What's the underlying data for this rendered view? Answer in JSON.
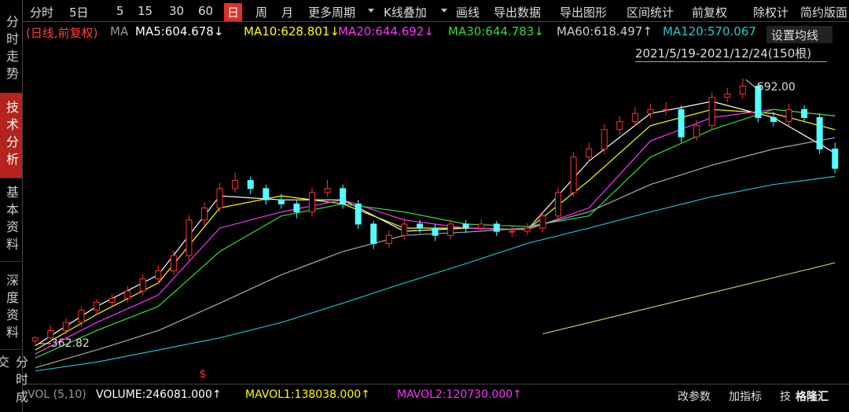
{
  "toolbar": [
    "分时",
    "5日",
    "5",
    "15",
    "30",
    "60",
    "日",
    "周",
    "月",
    "更多周期",
    "K线叠加",
    "画线",
    "导出数据",
    "导出图形",
    "区间统计",
    "前复权",
    "除权计",
    "简约版面"
  ],
  "sidebar": [
    "分时走势",
    "技术分析",
    "基本资料",
    "深度资料",
    "分时成交"
  ],
  "legend": {
    "period": "(日线,前复权)",
    "ma": "MA",
    "items": [
      {
        "text": "MA5:604.678↓",
        "color": "#ffffff"
      },
      {
        "text": "MA10:628.801↓",
        "color": "#ffff00"
      },
      {
        "text": "MA20:644.692↓",
        "color": "#ff33ff"
      },
      {
        "text": "MA30:644.783↓",
        "color": "#33dd33"
      },
      {
        "text": "MA60:618.497↑",
        "color": "#cccccc"
      },
      {
        "text": "MA120:570.067",
        "color": "#22cccc"
      }
    ],
    "setting": "设置均线",
    "range": "2021/5/19-2021/12/24(150根)"
  },
  "chart_data": {
    "type": "candlestick",
    "ylim": [
      320,
      700
    ],
    "up_color": "#ff3232",
    "down_color": "#54ffff",
    "candles": [
      [
        366,
        372,
        362.82,
        370
      ],
      [
        370,
        385,
        368,
        379
      ],
      [
        379,
        394,
        375,
        389
      ],
      [
        389,
        409,
        384,
        404
      ],
      [
        404,
        418,
        398,
        414
      ],
      [
        414,
        425,
        408,
        419
      ],
      [
        419,
        434,
        414,
        428
      ],
      [
        428,
        449,
        423,
        443
      ],
      [
        443,
        460,
        438,
        453
      ],
      [
        453,
        478,
        448,
        472
      ],
      [
        472,
        522,
        466,
        516
      ],
      [
        516,
        538,
        510,
        531
      ],
      [
        531,
        562,
        526,
        555
      ],
      [
        555,
        575,
        550,
        565
      ],
      [
        565,
        570,
        548,
        555
      ],
      [
        555,
        560,
        535,
        541
      ],
      [
        541,
        548,
        530,
        536
      ],
      [
        536,
        540,
        518,
        526
      ],
      [
        526,
        556,
        520,
        550
      ],
      [
        550,
        566,
        545,
        555
      ],
      [
        555,
        560,
        530,
        536
      ],
      [
        536,
        541,
        505,
        511
      ],
      [
        511,
        515,
        480,
        487
      ],
      [
        487,
        503,
        482,
        497
      ],
      [
        497,
        518,
        492,
        511
      ],
      [
        511,
        516,
        500,
        506
      ],
      [
        506,
        511,
        490,
        497
      ],
      [
        497,
        517,
        492,
        511
      ],
      [
        511,
        516,
        500,
        506
      ],
      [
        506,
        517,
        501,
        511
      ],
      [
        511,
        515,
        496,
        502
      ],
      [
        502,
        508,
        495,
        502
      ],
      [
        502,
        512,
        497,
        506
      ],
      [
        506,
        527,
        501,
        521
      ],
      [
        521,
        556,
        516,
        550
      ],
      [
        550,
        600,
        545,
        594
      ],
      [
        594,
        612,
        588,
        604
      ],
      [
        604,
        635,
        598,
        628
      ],
      [
        628,
        645,
        622,
        638
      ],
      [
        638,
        656,
        632,
        648
      ],
      [
        648,
        660,
        642,
        653
      ],
      [
        653,
        662,
        645,
        653
      ],
      [
        653,
        658,
        612,
        619
      ],
      [
        619,
        640,
        614,
        633
      ],
      [
        633,
        674,
        628,
        668
      ],
      [
        668,
        680,
        662,
        672
      ],
      [
        672,
        692.0,
        666,
        682
      ],
      [
        682,
        686,
        637,
        643
      ],
      [
        643,
        650,
        632,
        638
      ],
      [
        638,
        660,
        633,
        653
      ],
      [
        653,
        658,
        637,
        643
      ],
      [
        643,
        648,
        598,
        604
      ],
      [
        604,
        612,
        574,
        580
      ]
    ],
    "ma_x": [
      0,
      4,
      8,
      12,
      16,
      20,
      24,
      28,
      32,
      36,
      40,
      44,
      48,
      52
    ],
    "ma_lines": [
      {
        "color": "#ffffff",
        "values": [
          360,
          409,
          448,
          546,
          541,
          541,
          502,
          506,
          504,
          589,
          648,
          663,
          643,
          599
        ]
      },
      {
        "color": "#ffff00",
        "values": [
          355,
          399,
          438,
          531,
          546,
          536,
          506,
          506,
          504,
          565,
          633,
          653,
          648,
          628
        ]
      },
      {
        "color": "#ff33ff",
        "values": [
          350,
          389,
          423,
          506,
          526,
          541,
          516,
          506,
          504,
          531,
          614,
          643,
          653,
          645
        ]
      },
      {
        "color": "#33dd33",
        "values": [
          345,
          379,
          409,
          477,
          521,
          536,
          526,
          511,
          508,
          521,
          594,
          628,
          653,
          645
        ]
      },
      {
        "color": "#aaaaaa",
        "values": [
          333,
          355,
          379,
          413,
          448,
          477,
          497,
          501,
          506,
          526,
          560,
          584,
          604,
          618
        ]
      },
      {
        "color": "#22bbcc",
        "values": [
          329,
          340,
          355,
          370,
          389,
          413,
          438,
          462,
          487,
          506,
          526,
          545,
          560,
          570
        ]
      }
    ],
    "long_line": {
      "color": "#c8c864",
      "x": [
        33,
        52
      ],
      "values": [
        375,
        463
      ]
    },
    "high_label": {
      "value": 692,
      "label": "692.00"
    },
    "low_label": {
      "value": 362.82,
      "label": "362.82"
    },
    "dividend_mark": "$"
  },
  "volume_bar": {
    "name": "VOL (5,10)",
    "items": [
      {
        "text": "VOLUME:246081.000↑",
        "color": "#ffffff"
      },
      {
        "text": "MAVOL1:138038.000↑",
        "color": "#ffff00"
      },
      {
        "text": "MAVOL2:120730.000↑",
        "color": "#ff33ff"
      }
    ],
    "buttons": [
      "改参数",
      "加指标",
      "技"
    ],
    "watermark": "格隆汇"
  }
}
